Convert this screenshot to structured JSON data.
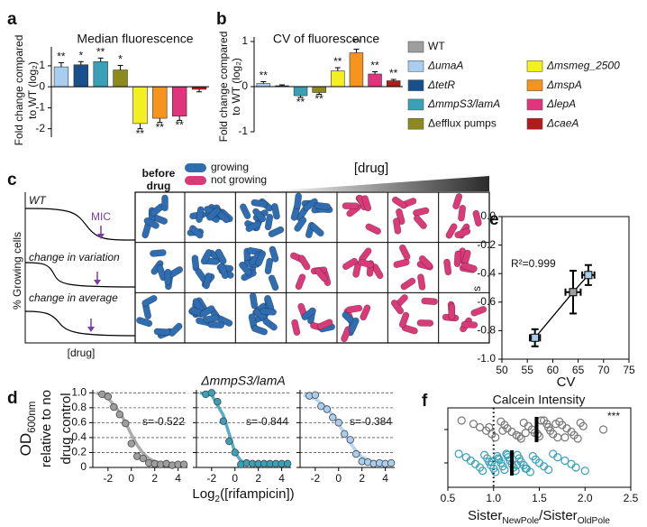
{
  "panel_labels": [
    "a",
    "b",
    "c",
    "d",
    "e",
    "f"
  ],
  "legend": {
    "entries": [
      {
        "label": "WT",
        "color": "#9e9e9e",
        "italic": false
      },
      {
        "label": "ΔumaA",
        "color": "#a8cdee",
        "italic": true
      },
      {
        "label": "ΔtetR",
        "color": "#17508c",
        "italic": true
      },
      {
        "label": "ΔmmpS3/lamA",
        "color": "#3aa0b8",
        "italic": true
      },
      {
        "label": "Δefflux pumps",
        "color": "#8c8a1c",
        "italic": false
      },
      {
        "label": "Δmsmeg_2500",
        "color": "#f4ef22",
        "italic": true
      },
      {
        "label": "ΔmspA",
        "color": "#f7941d",
        "italic": true
      },
      {
        "label": "ΔlepA",
        "color": "#e0347c",
        "italic": true
      },
      {
        "label": "ΔcaeA",
        "color": "#b31b1b",
        "italic": true
      }
    ]
  },
  "diagram": {
    "before_drug": [
      "before",
      "drug"
    ],
    "legend": [
      {
        "label": "growing",
        "color": "#2f6db0"
      },
      {
        "label": "not growing",
        "color": "#d93a78"
      }
    ],
    "gradient_label": "[drug]",
    "curves": [
      {
        "label": "WT",
        "marker": "MIC"
      },
      {
        "label": "change in variation"
      },
      {
        "label": "change in average"
      }
    ],
    "y_label": "% Growing cells",
    "x_label": "[drug]"
  },
  "chart_data": [
    {
      "type": "bar",
      "title": "Median fluorescence",
      "y_label": [
        "Fold change compared",
        "to WT (log₂)"
      ],
      "values": [
        0.95,
        1.05,
        1.2,
        0.8,
        -1.75,
        -1.5,
        -1.4,
        -0.12
      ],
      "errors": [
        0.2,
        0.15,
        0.17,
        0.22,
        0.25,
        0.2,
        0.2,
        0.12
      ],
      "colors": [
        "#a8cdee",
        "#17508c",
        "#3aa0b8",
        "#8c8a1c",
        "#f4ef22",
        "#f7941d",
        "#e0347c",
        "#b31b1b"
      ],
      "annotations": [
        "**",
        "*",
        "**",
        "*",
        "**",
        "**",
        "**",
        null
      ],
      "ylim": [
        -2.4,
        1.9
      ],
      "yticks": [
        -2,
        -1,
        0,
        1
      ]
    },
    {
      "type": "bar",
      "title": "CV of fluorescence",
      "y_label": [
        "Fold change compared",
        "to WT (log₂)"
      ],
      "values": [
        0.07,
        0.02,
        -0.2,
        -0.13,
        0.35,
        0.75,
        0.28,
        0.13
      ],
      "errors": [
        0.04,
        0.02,
        0.04,
        0.04,
        0.07,
        0.08,
        0.05,
        0.03
      ],
      "colors": [
        "#a8cdee",
        "#17508c",
        "#3aa0b8",
        "#8c8a1c",
        "#f4ef22",
        "#f7941d",
        "#e0347c",
        "#b31b1b"
      ],
      "annotations": [
        "**",
        null,
        "**",
        "**",
        "**",
        "**",
        "**",
        "**"
      ],
      "ylim": [
        -1,
        1.1
      ],
      "yticks": [
        -1,
        0,
        1
      ]
    },
    {
      "type": "scatter",
      "x": [
        56.5,
        64,
        67
      ],
      "values": [
        -0.85,
        -0.53,
        -0.41
      ],
      "x_errors": [
        1,
        1.5,
        1.2
      ],
      "errors": [
        0.06,
        0.15,
        0.07
      ],
      "colors": [
        "#a8cdee",
        "#9e9e9e",
        "#a8cdee"
      ],
      "marker": "square",
      "connect": true,
      "frame": true,
      "annotation": "R²=0.999",
      "x_label": "CV",
      "y_label": "s",
      "xlim": [
        50,
        75
      ],
      "xticks": [
        50,
        55,
        60,
        65,
        70,
        75
      ],
      "ylim": [
        -1,
        0
      ],
      "yticks": [
        {
          "value": -1,
          "label": "-1.0"
        },
        -0.8,
        -0.6,
        -0.4,
        -0.2,
        {
          "value": 0,
          "label": "0.0"
        }
      ]
    },
    {
      "type": "scatter",
      "color": "#9e9e9e",
      "grid": true,
      "ytick_labels": true,
      "y_label": [
        [
          {
            "text": "OD"
          },
          {
            "text": "600nm",
            "sub": true
          }
        ],
        [
          {
            "text": "relative to no"
          }
        ],
        [
          {
            "text": "drug control"
          }
        ]
      ],
      "x": [
        -2.5,
        -2,
        -1.5,
        -1,
        -0.5,
        0,
        0.5,
        1,
        1.5,
        2,
        2.5,
        3,
        3.5,
        4,
        4.5
      ],
      "values": [
        0.98,
        0.95,
        0.81,
        0.71,
        0.59,
        0.32,
        0.15,
        0.12,
        0.06,
        0.05,
        0.04,
        0.05,
        0.03,
        0.04,
        0.04
      ],
      "fit": {
        "x": [
          -3,
          -2,
          -1,
          -0.5,
          0,
          0.5,
          1,
          1.5,
          2,
          3,
          4.5
        ],
        "values": [
          1.0,
          0.93,
          0.74,
          0.6,
          0.44,
          0.3,
          0.19,
          0.12,
          0.08,
          0.04,
          0.03
        ]
      },
      "annotation": "s=-0.522",
      "xlim": [
        -3.3,
        4.8
      ],
      "xticks": [
        -2,
        0,
        2,
        4
      ],
      "ylim": [
        0,
        1.04
      ],
      "yticks": [
        0,
        0.2,
        0.4,
        0.6,
        0.8,
        {
          "value": 1,
          "label": "1.0"
        }
      ]
    },
    {
      "type": "scatter",
      "color": "#3aa0b8",
      "grid": true,
      "ytick_labels": false,
      "title": "ΔmmpS3/lamA",
      "x_label": [
        {
          "text": "Log"
        },
        {
          "text": "2",
          "sub": true
        },
        {
          "text": "([rifampicin])"
        }
      ],
      "x": [
        -2.5,
        -2,
        -1.5,
        -1,
        -0.5,
        0,
        0.5,
        1,
        1.5,
        2,
        2.5,
        3,
        3.5,
        4,
        4.5
      ],
      "values": [
        0.98,
        1.0,
        0.88,
        0.62,
        0.35,
        0.2,
        0.04,
        0.06,
        0.05,
        0.05,
        0.05,
        0.05,
        0.05,
        0.05,
        0.05
      ],
      "fit": {
        "x": [
          -3,
          -2,
          -1,
          -0.5,
          0,
          0.5,
          1,
          1.5,
          2,
          3,
          4.5
        ],
        "values": [
          1.0,
          0.97,
          0.7,
          0.45,
          0.2,
          0.09,
          0.06,
          0.05,
          0.05,
          0.05,
          0.05
        ]
      },
      "annotation": "s=-0.844",
      "xlim": [
        -3.3,
        4.8
      ],
      "xticks": [
        -2,
        0,
        2,
        4
      ],
      "ylim": [
        0,
        1.04
      ],
      "yticks": [
        0,
        0.2,
        0.4,
        0.6,
        0.8,
        1
      ]
    },
    {
      "type": "scatter",
      "color": "#a8cdee",
      "grid": true,
      "ytick_labels": false,
      "x": [
        -2.5,
        -2,
        -1.5,
        -1,
        -0.5,
        0,
        0.5,
        1,
        1.5,
        2,
        2.5,
        3,
        3.5,
        4,
        4.5
      ],
      "values": [
        0.96,
        0.97,
        0.82,
        0.78,
        0.67,
        0.6,
        0.45,
        0.37,
        0.18,
        0.08,
        0.07,
        0.05,
        0.06,
        0.05,
        0.06
      ],
      "fit": {
        "x": [
          -3,
          -2,
          -1,
          -0.5,
          0,
          0.5,
          1,
          1.5,
          2,
          3,
          4.5
        ],
        "values": [
          0.97,
          0.92,
          0.8,
          0.7,
          0.58,
          0.46,
          0.33,
          0.22,
          0.14,
          0.07,
          0.05
        ]
      },
      "annotation": "s=-0.384",
      "xlim": [
        -3.3,
        4.8
      ],
      "xticks": [
        -2,
        0,
        2,
        4
      ],
      "ylim": [
        0,
        1.04
      ],
      "yticks": [
        0,
        0.2,
        0.4,
        0.6,
        0.8,
        1
      ]
    },
    {
      "type": "strip",
      "title": "Calcein Intensity",
      "annotation": "***",
      "ref_line": 1,
      "x_label": [
        {
          "text": "Sister"
        },
        {
          "text": "NewPole",
          "sub": true
        },
        {
          "text": "/Sister"
        },
        {
          "text": "OldPole",
          "sub": true
        }
      ],
      "xlim": [
        0.5,
        2.5
      ],
      "xticks": [
        0.5,
        {
          "value": 1,
          "label": "1.0"
        },
        1.5,
        {
          "value": 2,
          "label": "2.0"
        },
        2.5
      ],
      "series": [
        {
          "color": "#777777",
          "median": 1.47,
          "values": [
            0.65,
            0.78,
            0.85,
            0.92,
            0.98,
            1.02,
            1.08,
            1.12,
            1.15,
            1.2,
            1.25,
            1.3,
            1.33,
            1.38,
            1.42,
            1.45,
            1.5,
            1.55,
            1.58,
            1.6,
            1.62,
            1.65,
            1.7,
            1.72,
            1.75,
            1.8,
            1.85,
            1.88,
            1.92,
            1.95,
            1.98,
            2.2,
            1.35,
            1.28,
            1.52,
            1.68,
            0.95,
            1.1,
            1.48,
            1.78
          ]
        },
        {
          "color": "#3aa0b8",
          "median": 1.2,
          "values": [
            0.62,
            0.7,
            0.75,
            0.8,
            0.85,
            0.88,
            0.9,
            0.93,
            0.95,
            0.97,
            1.0,
            1.02,
            1.04,
            1.06,
            1.08,
            1.1,
            1.12,
            1.14,
            1.16,
            1.18,
            1.2,
            1.22,
            1.24,
            1.26,
            1.28,
            1.3,
            1.33,
            1.36,
            1.4,
            1.43,
            1.46,
            1.5,
            1.55,
            1.6,
            1.65,
            1.7,
            1.78,
            1.85,
            1.9,
            2.0,
            1.15,
            1.05,
            0.98,
            1.25,
            1.35
          ]
        }
      ]
    }
  ]
}
